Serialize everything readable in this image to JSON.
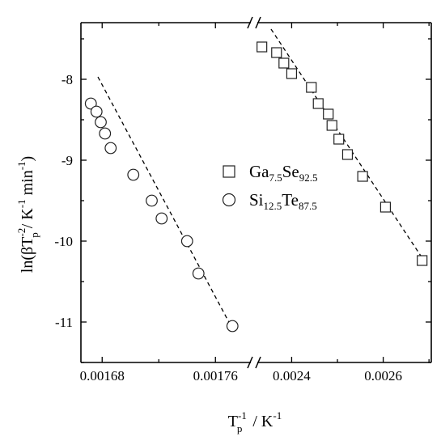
{
  "chart_data": {
    "type": "scatter",
    "xlabel": {
      "main": "T",
      "sub": "p",
      "sup": "-1",
      "unit": " / K",
      "unit_sup": "-1"
    },
    "ylabel": {
      "pre": "ln(βT",
      "sup1": "-2",
      "sub1": "p",
      "mid": " / K",
      "sup2": "-1",
      "mid2": " min",
      "sup3": "-1",
      "post": ")"
    },
    "y_range": [
      -11.5,
      -7.3
    ],
    "y_ticks": [
      "-8",
      "-9",
      "-10",
      "-11"
    ],
    "broken_x_axis": true,
    "x_segments": [
      {
        "range": [
          0.001665,
          0.001785
        ],
        "ticks": [
          "0.00168",
          "0.00176"
        ]
      },
      {
        "range": [
          0.002325,
          0.002705
        ],
        "ticks": [
          "0.0024",
          "0.0026"
        ]
      }
    ],
    "legend": {
      "position": "center",
      "entries": [
        {
          "marker": "square",
          "base1": "Ga",
          "sub1": "7.5",
          "base2": "Se",
          "sub2": "92.5"
        },
        {
          "marker": "circle",
          "base1": "Si",
          "sub1": "12.5",
          "base2": "Te",
          "sub2": "87.5"
        }
      ]
    },
    "series": [
      {
        "name": "Si12.5Te87.5",
        "marker": "circle",
        "segment": 0,
        "x": [
          0.001672,
          0.001676,
          0.001679,
          0.001682,
          0.001686,
          0.001702,
          0.001715,
          0.001722,
          0.00174,
          0.001748,
          0.001772
        ],
        "y": [
          -8.3,
          -8.4,
          -8.53,
          -8.67,
          -8.85,
          -9.18,
          -9.5,
          -9.72,
          -10.0,
          -10.4,
          -11.05
        ],
        "fit": {
          "x": [
            0.001677,
            0.001771
          ],
          "y": [
            -7.97,
            -11.05
          ]
        }
      },
      {
        "name": "Ga7.5Se92.5",
        "marker": "square",
        "segment": 1,
        "x": [
          0.002335,
          0.002367,
          0.002383,
          0.0024,
          0.002443,
          0.002458,
          0.00248,
          0.002488,
          0.002503,
          0.002522,
          0.002555,
          0.002605,
          0.002685
        ],
        "y": [
          -7.6,
          -7.67,
          -7.8,
          -7.93,
          -8.1,
          -8.3,
          -8.43,
          -8.57,
          -8.74,
          -8.93,
          -9.2,
          -9.58,
          -10.24
        ],
        "fit": {
          "x": [
            0.002355,
            0.00269
          ],
          "y": [
            -7.38,
            -10.25
          ]
        }
      }
    ]
  }
}
